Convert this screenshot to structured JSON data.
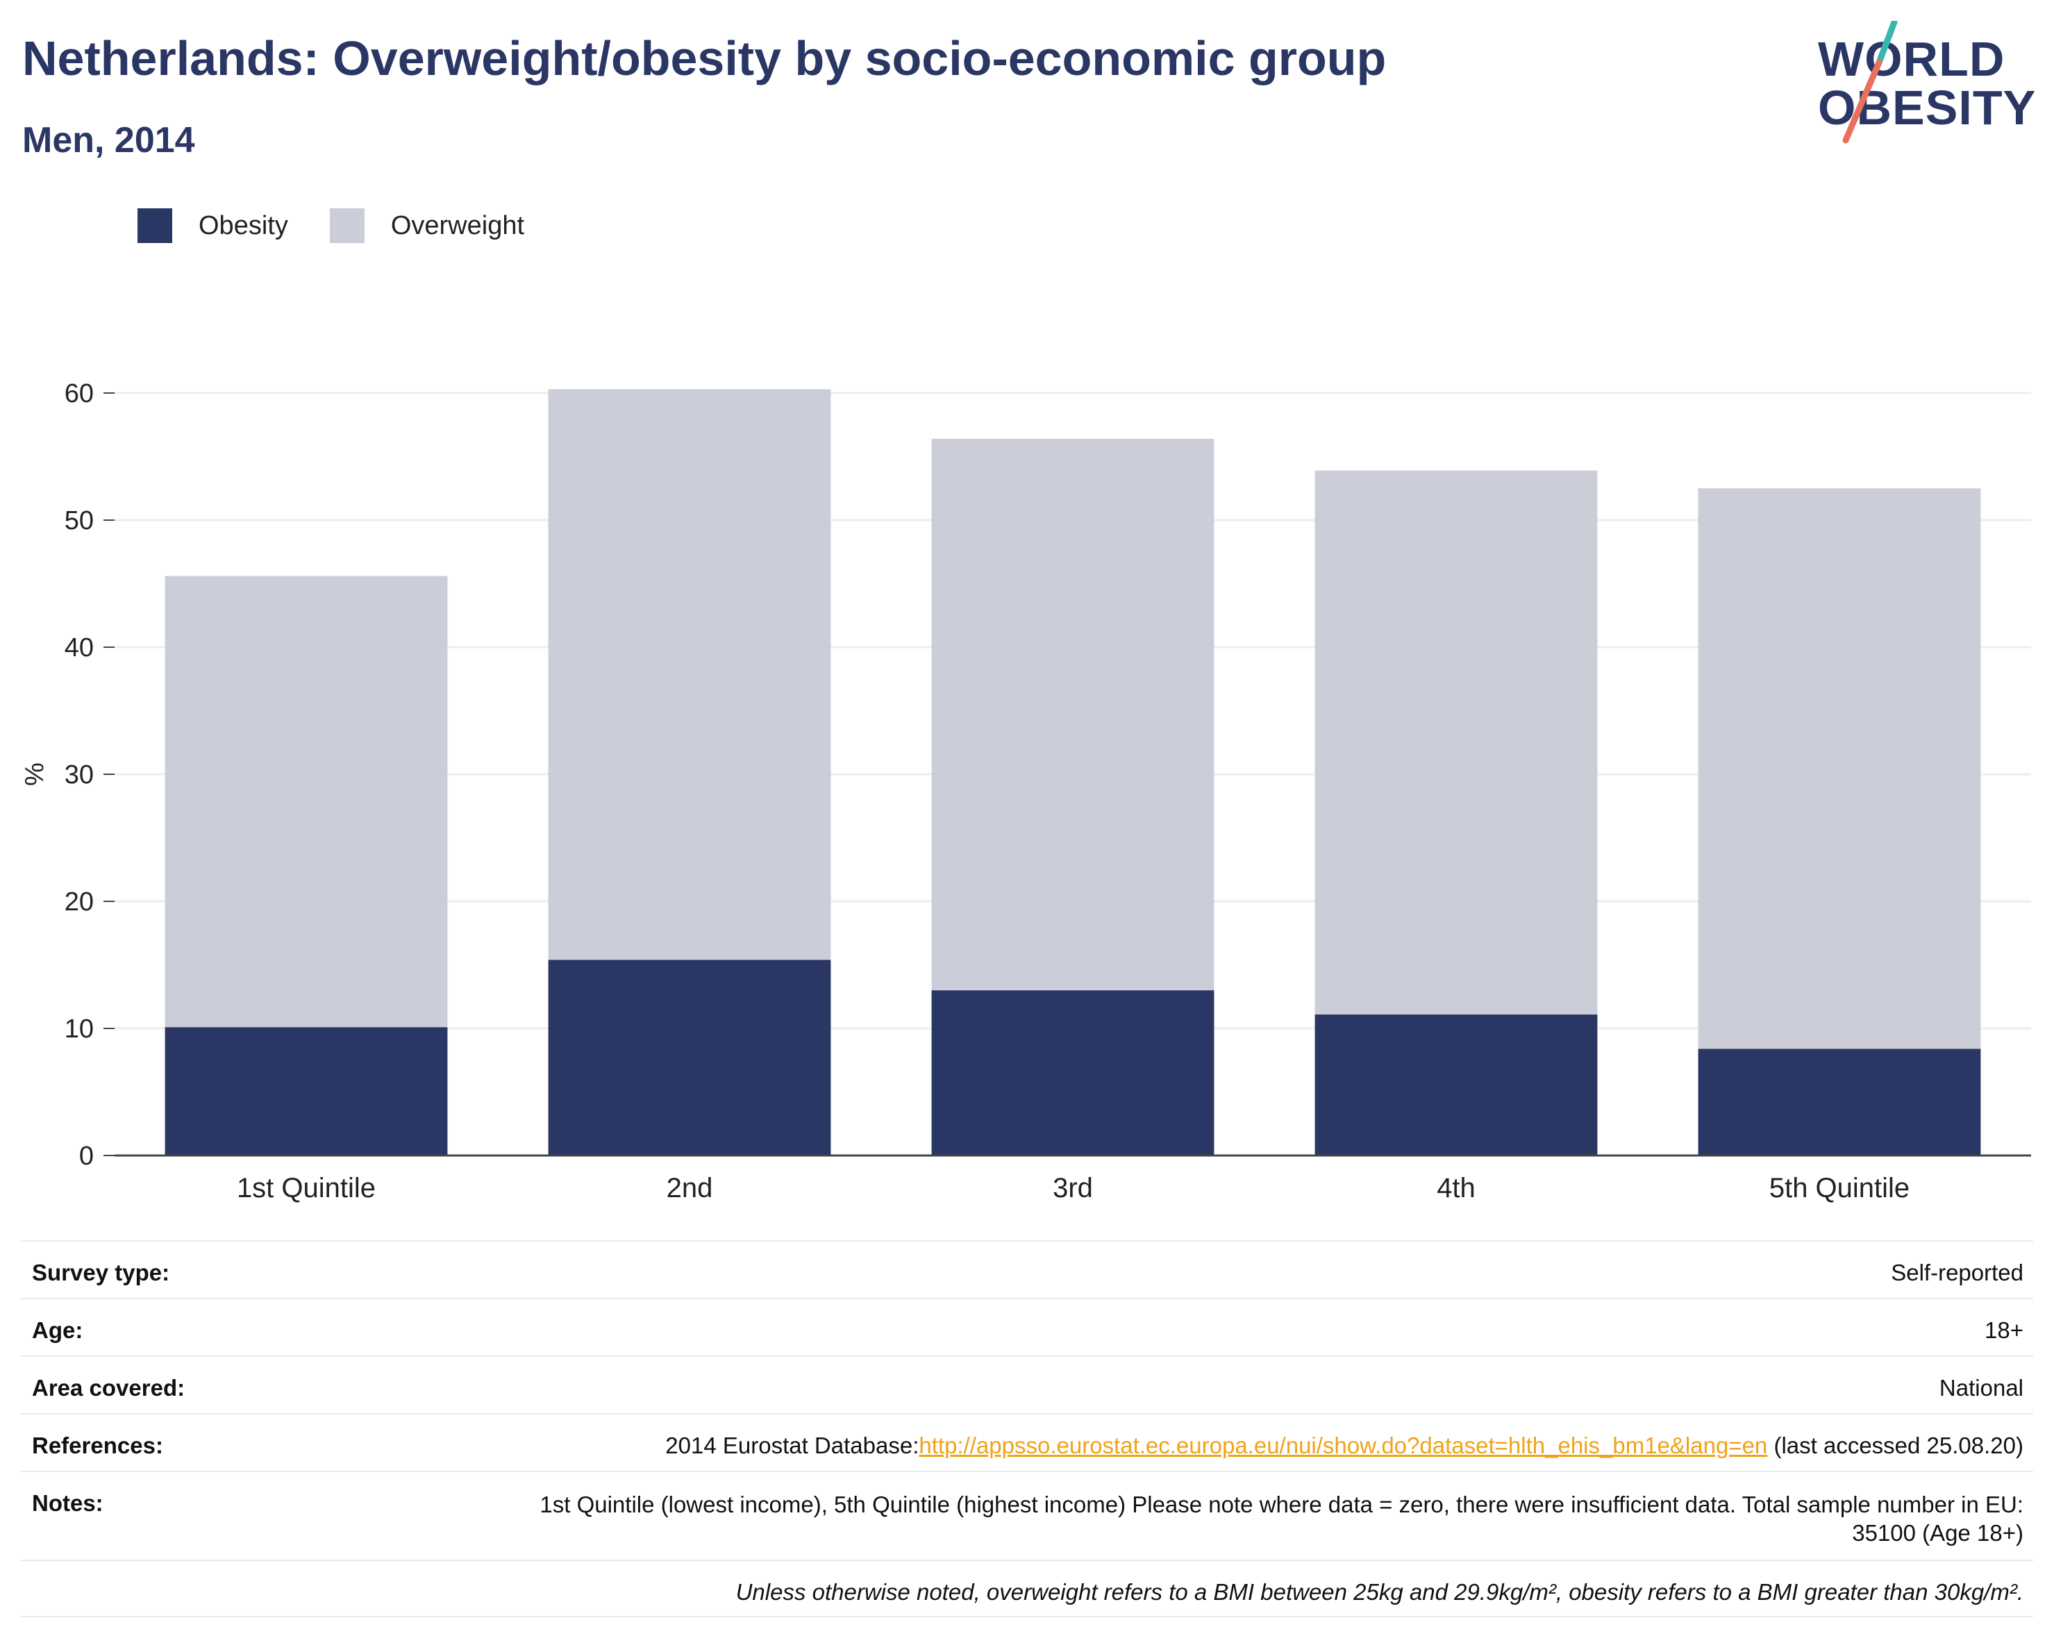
{
  "header": {
    "title": "Netherlands: Overweight/obesity by socio-economic group",
    "subtitle": "Men, 2014"
  },
  "logo": {
    "line1": "WORLD",
    "line2": "OBESITY"
  },
  "colors": {
    "obesity": "#2a3664",
    "overweight": "#cbcdd8",
    "title": "#2a3664",
    "link": "#f0a21a"
  },
  "chart_data": {
    "type": "bar",
    "stacked": true,
    "categories": [
      "1st Quintile",
      "2nd",
      "3rd",
      "4th",
      "5th Quintile"
    ],
    "series": [
      {
        "name": "Obesity",
        "values": [
          10.1,
          15.4,
          13.0,
          11.1,
          8.4
        ]
      },
      {
        "name": "Overweight",
        "values": [
          35.5,
          44.9,
          43.4,
          42.8,
          44.1
        ]
      }
    ],
    "ylabel": "%",
    "ylim": [
      0,
      60
    ],
    "yticks": [
      0,
      10,
      20,
      30,
      40,
      50,
      60
    ],
    "grid": true,
    "legend_position": "top-left"
  },
  "info": {
    "survey_type": {
      "label": "Survey type:",
      "value": "Self-reported"
    },
    "age": {
      "label": "Age:",
      "value": "18+"
    },
    "area": {
      "label": "Area covered:",
      "value": "National"
    },
    "references": {
      "label": "References:",
      "prefix": "2014 Eurostat Database:",
      "link": "http://appsso.eurostat.ec.europa.eu/nui/show.do?dataset=hlth_ehis_bm1e&lang=en",
      "suffix": " (last accessed 25.08.20)"
    },
    "notes": {
      "label": "Notes:",
      "value": "1st Quintile (lowest income), 5th Quintile (highest income) Please note where data = zero, there were insufficient data. Total sample number in EU: 35100 (Age 18+)"
    },
    "footnote": "Unless otherwise noted, overweight refers to a BMI between 25kg and 29.9kg/m², obesity refers to a BMI greater than 30kg/m²."
  }
}
